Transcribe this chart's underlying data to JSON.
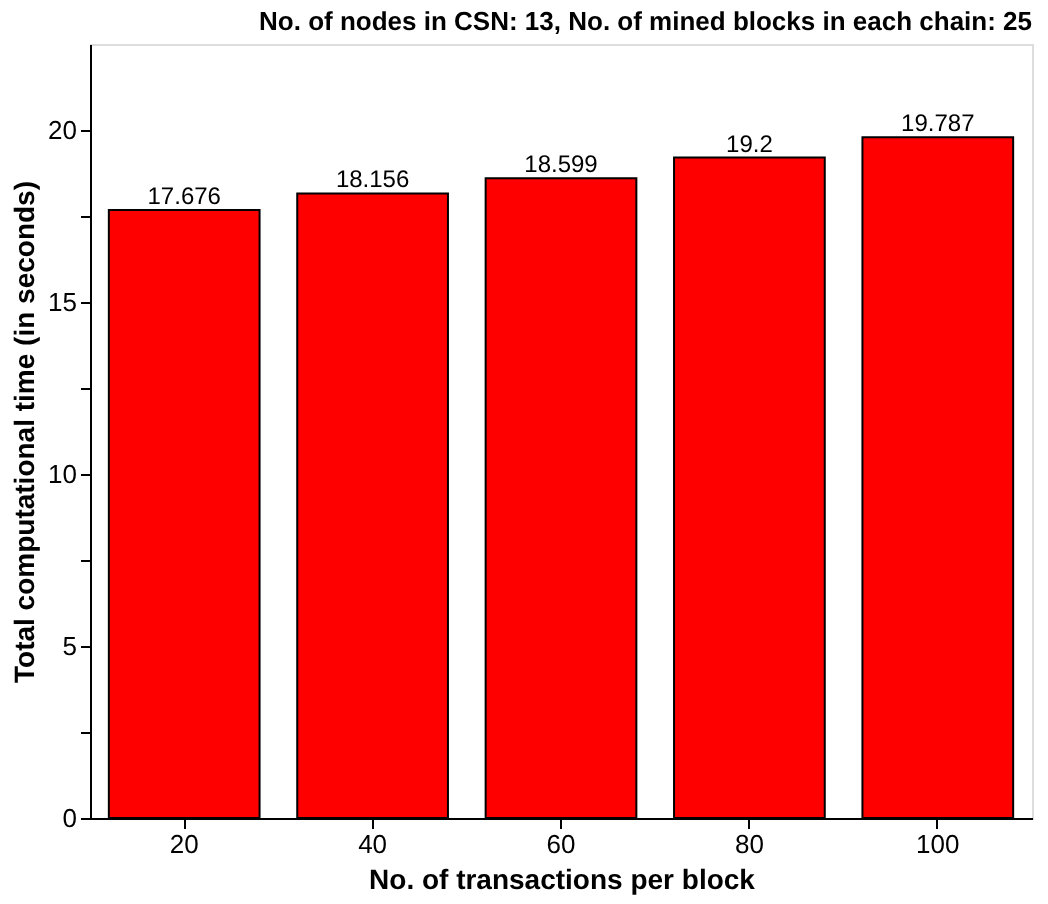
{
  "chart_data": {
    "type": "bar",
    "title": "No. of nodes in CSN: 13, No. of mined blocks in each chain: 25",
    "xlabel": "No. of transactions per block",
    "ylabel": "Total computational time (in seconds)",
    "categories": [
      "20",
      "40",
      "60",
      "80",
      "100"
    ],
    "values": [
      17.676,
      18.156,
      18.599,
      19.2,
      19.787
    ],
    "color": "#ff0000",
    "data_labels": true,
    "ylim": [
      0,
      22.5
    ],
    "yticks": [
      0,
      {
        "value": 2.5,
        "label": null
      },
      5,
      {
        "value": 7.5,
        "label": null
      },
      10,
      {
        "value": 12.5,
        "label": null
      },
      15,
      {
        "value": 17.5,
        "label": null
      },
      20
    ],
    "grid": false
  }
}
